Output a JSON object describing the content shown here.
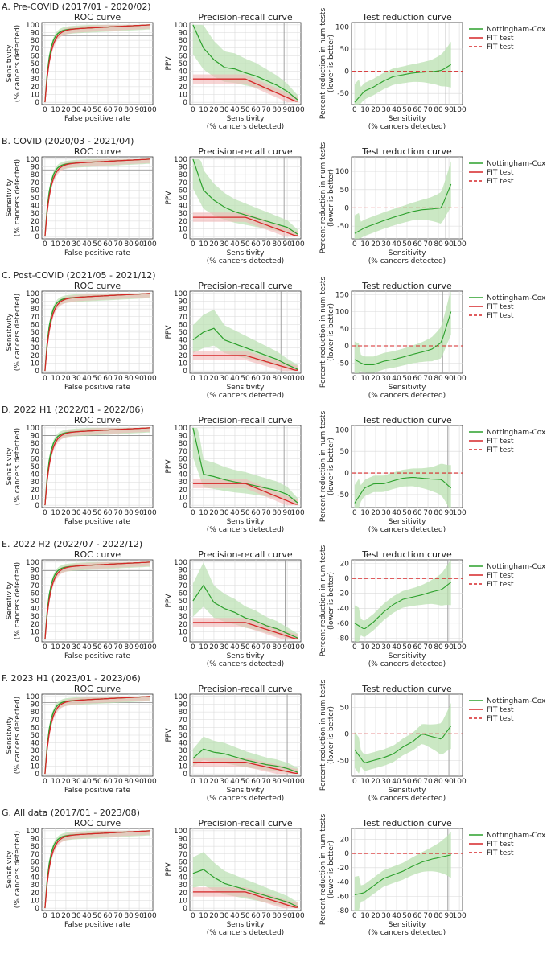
{
  "figure": {
    "rows": [
      {
        "label": "A. Pre-COVID (2017/01 - 2020/02)",
        "roc_ref": 86,
        "pr_vline": 87,
        "tr_vline": 87,
        "tr_ylim": [
          -75,
          110
        ],
        "tr_yticks": [
          -50,
          0,
          50,
          100
        ],
        "fit_ppv": 30,
        "ncox_ppv": [
          100,
          70,
          55,
          45,
          43,
          38,
          34,
          28,
          22,
          14,
          3
        ],
        "tr_curve": [
          -70,
          -45,
          -35,
          -22,
          -12,
          -8,
          -4,
          -2,
          -1,
          2,
          15
        ]
      },
      {
        "label": "B. COVID (2020/03 - 2021/04)",
        "roc_ref": 86,
        "pr_vline": 87,
        "tr_vline": 87,
        "tr_ylim": [
          -85,
          140
        ],
        "tr_yticks": [
          -50,
          0,
          50,
          100
        ],
        "fit_ppv": 25,
        "ncox_ppv": [
          100,
          60,
          47,
          38,
          32,
          28,
          24,
          20,
          16,
          12,
          3
        ],
        "tr_curve": [
          -70,
          -55,
          -45,
          -35,
          -26,
          -18,
          -10,
          -5,
          -3,
          0,
          65
        ]
      },
      {
        "label": "C. Post-COVID (2021/05 - 2021/12)",
        "roc_ref": 84,
        "pr_vline": 84,
        "tr_vline": 84,
        "tr_ylim": [
          -80,
          160
        ],
        "tr_yticks": [
          -50,
          0,
          50,
          100,
          150
        ],
        "fit_ppv": 20,
        "ncox_ppv": [
          40,
          50,
          55,
          40,
          35,
          30,
          25,
          20,
          15,
          8,
          2
        ],
        "tr_curve": [
          -40,
          -55,
          -55,
          -45,
          -40,
          -33,
          -25,
          -18,
          -10,
          10,
          100
        ]
      },
      {
        "label": "D. 2022 H1 (2022/01 - 2022/06)",
        "roc_ref": 90,
        "pr_vline": 87,
        "tr_vline": 89,
        "tr_ylim": [
          -80,
          110
        ],
        "tr_yticks": [
          -50,
          0,
          50,
          100
        ],
        "fit_ppv": 28,
        "ncox_ppv": [
          100,
          40,
          37,
          33,
          30,
          28,
          25,
          22,
          19,
          14,
          3
        ],
        "tr_curve": [
          -70,
          -35,
          -25,
          -25,
          -18,
          -12,
          -10,
          -12,
          -14,
          -15,
          -35
        ]
      },
      {
        "label": "E. 2022 H2 (2022/07 - 2022/12)",
        "roc_ref": 89,
        "pr_vline": 88,
        "tr_vline": 89,
        "tr_ylim": [
          -85,
          25
        ],
        "tr_yticks": [
          -80,
          -60,
          -40,
          -20,
          0,
          20
        ],
        "fit_ppv": 22,
        "ncox_ppv": [
          50,
          70,
          48,
          40,
          35,
          28,
          24,
          18,
          14,
          8,
          2
        ],
        "tr_curve": [
          -60,
          -68,
          -58,
          -45,
          -35,
          -28,
          -25,
          -22,
          -18,
          -15,
          -5
        ]
      },
      {
        "label": "F. 2023 H1 (2023/01 - 2023/06)",
        "roc_ref": 92,
        "pr_vline": 90,
        "tr_vline": 90,
        "tr_ylim": [
          -80,
          75
        ],
        "tr_yticks": [
          -50,
          0,
          50
        ],
        "fit_ppv": 15,
        "ncox_ppv": [
          20,
          32,
          28,
          26,
          22,
          18,
          15,
          12,
          10,
          7,
          2
        ],
        "tr_curve": [
          -30,
          -55,
          -50,
          -45,
          -38,
          -25,
          -15,
          0,
          -5,
          -10,
          15
        ]
      },
      {
        "label": "G. All data (2017/01 - 2023/08)",
        "roc_ref": 87,
        "pr_vline": 89,
        "tr_vline": 89,
        "tr_ylim": [
          -80,
          35
        ],
        "tr_yticks": [
          -80,
          -60,
          -40,
          -20,
          0,
          20
        ],
        "fit_ppv": 21,
        "ncox_ppv": [
          45,
          50,
          40,
          32,
          28,
          24,
          20,
          16,
          12,
          8,
          2
        ],
        "tr_curve": [
          -58,
          -55,
          -45,
          -35,
          -30,
          -25,
          -18,
          -12,
          -8,
          -5,
          -2
        ]
      }
    ],
    "panel_titles": [
      "ROC curve",
      "Precision-recall curve",
      "Test reduction curve"
    ],
    "roc_xlabel": "False positive rate",
    "roc_ylabel": [
      "Sensitivity",
      "(% cancers detected)"
    ],
    "pr_xlabel": [
      "Sensitivity",
      "(% cancers detected)"
    ],
    "pr_ylabel": "PPV",
    "tr_xlabel": [
      "Sensitivity",
      "(% cancers detected)"
    ],
    "tr_ylabel": [
      "Percent reduction in num tests",
      "(lower is better)"
    ],
    "legend": [
      "Nottingham-Cox",
      "FIT test",
      "FIT test"
    ],
    "colors": {
      "green": "#2ca02c",
      "red": "#d62728",
      "green_band": "#b9e0b0",
      "red_band": "#f2b8b8",
      "grid": "#d9d9d9",
      "ref": "#999999"
    },
    "xticks": [
      0,
      10,
      20,
      30,
      40,
      50,
      60,
      70,
      80,
      90,
      100
    ],
    "tr_xticks": [
      0,
      10,
      20,
      30,
      40,
      50,
      60,
      70,
      80,
      90,
      100
    ],
    "roc_yticks": [
      0,
      10,
      20,
      30,
      40,
      50,
      60,
      70,
      80,
      90,
      100
    ],
    "pr_yticks": [
      0,
      10,
      20,
      30,
      40,
      50,
      60,
      70,
      80,
      90,
      100
    ]
  },
  "chart_data": [
    {
      "type": "line",
      "title": "ROC curve",
      "xlabel": "False positive rate",
      "ylabel": "Sensitivity (% cancers detected)",
      "xlim": [
        0,
        100
      ],
      "ylim": [
        0,
        100
      ],
      "series": [
        {
          "name": "Nottingham-Cox",
          "x": [
            0,
            2,
            5,
            10,
            20,
            40,
            60,
            80,
            100
          ],
          "y": [
            0,
            55,
            78,
            88,
            92,
            95,
            97,
            99,
            100
          ]
        },
        {
          "name": "FIT test",
          "x": [
            0,
            2,
            5,
            10,
            20,
            40,
            60,
            80,
            100
          ],
          "y": [
            0,
            50,
            75,
            86,
            91,
            94,
            96,
            98,
            100
          ]
        }
      ]
    },
    {
      "type": "line",
      "title": "Precision-recall curve",
      "xlabel": "Sensitivity (% cancers detected)",
      "ylabel": "PPV",
      "xlim": [
        0,
        100
      ],
      "ylim": [
        0,
        100
      ]
    },
    {
      "type": "line",
      "title": "Test reduction curve",
      "xlabel": "Sensitivity (% cancers detected)",
      "ylabel": "Percent reduction in num tests (lower is better)",
      "xlim": [
        0,
        100
      ]
    }
  ]
}
